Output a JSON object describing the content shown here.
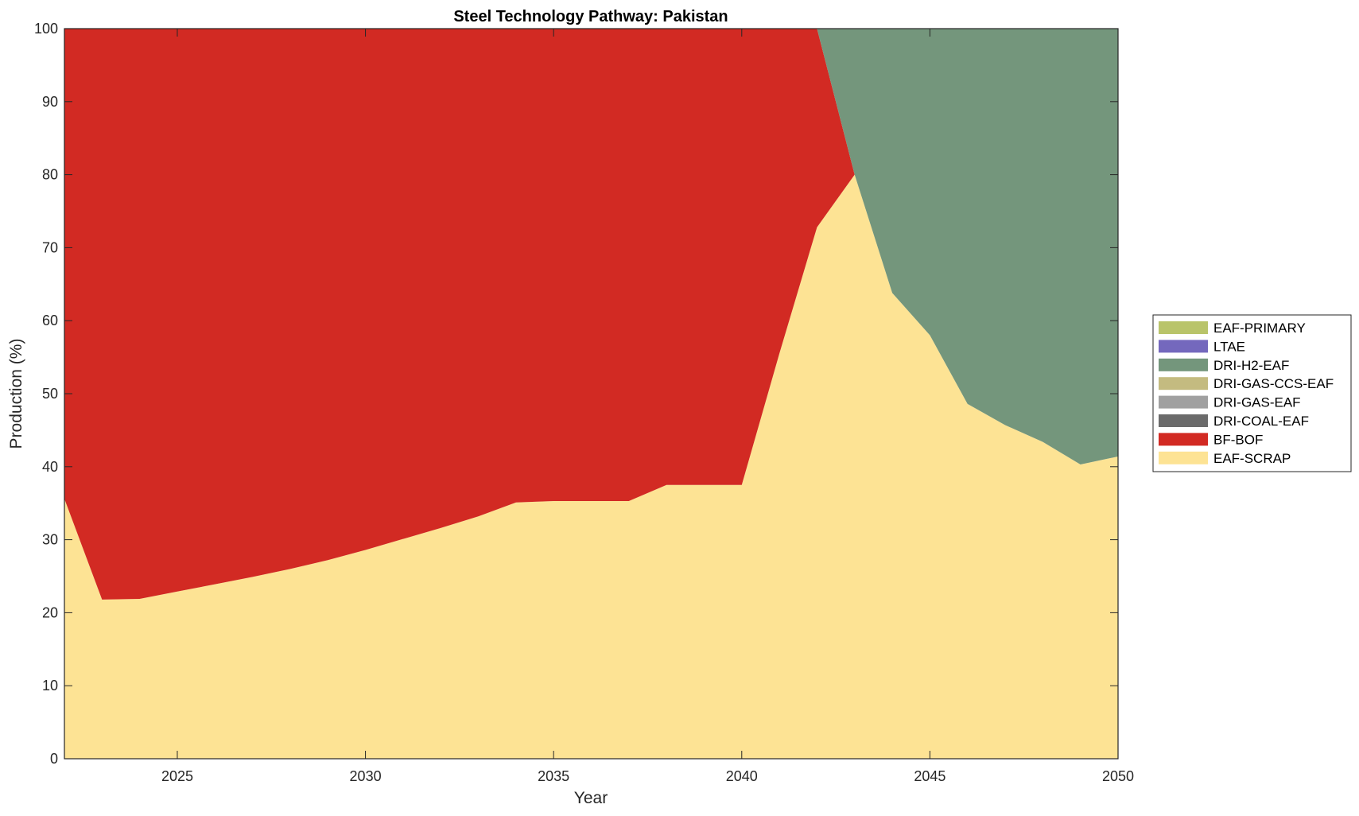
{
  "chart_data": {
    "type": "area",
    "title": "Steel Technology Pathway: Pakistan",
    "xlabel": "Year",
    "ylabel": "Production (%)",
    "xlim": [
      2022,
      2050
    ],
    "ylim": [
      0,
      100
    ],
    "xticks": [
      2025,
      2030,
      2035,
      2040,
      2045,
      2050
    ],
    "yticks": [
      0,
      10,
      20,
      30,
      40,
      50,
      60,
      70,
      80,
      90,
      100
    ],
    "grid": false,
    "legend_position": "right",
    "stacked": true,
    "x": [
      2022,
      2023,
      2024,
      2025,
      2026,
      2027,
      2028,
      2029,
      2030,
      2031,
      2032,
      2033,
      2034,
      2035,
      2036,
      2037,
      2038,
      2039,
      2040,
      2041,
      2042,
      2043,
      2044,
      2045,
      2046,
      2047,
      2048,
      2049,
      2050
    ],
    "series": [
      {
        "name": "EAF-SCRAP",
        "color": "#fde394",
        "values": [
          35.6,
          21.8,
          21.9,
          22.9,
          23.9,
          24.9,
          26.0,
          27.2,
          28.6,
          30.1,
          31.6,
          33.2,
          35.1,
          35.3,
          35.3,
          35.3,
          37.5,
          37.5,
          37.5,
          55.5,
          72.8,
          80.0,
          63.8,
          58.0,
          48.6,
          45.7,
          43.4,
          40.3,
          41.4
        ]
      },
      {
        "name": "BF-BOF",
        "color": "#d22a23",
        "values": [
          64.4,
          78.2,
          78.1,
          77.1,
          76.1,
          75.1,
          74.0,
          72.8,
          71.4,
          69.9,
          68.4,
          66.8,
          64.9,
          64.7,
          64.7,
          64.7,
          62.5,
          62.5,
          62.5,
          44.5,
          27.2,
          0,
          0,
          0,
          0,
          0,
          0,
          0,
          0
        ]
      },
      {
        "name": "DRI-COAL-EAF",
        "color": "#6b6b6b",
        "values": [
          0,
          0,
          0,
          0,
          0,
          0,
          0,
          0,
          0,
          0,
          0,
          0,
          0,
          0,
          0,
          0,
          0,
          0,
          0,
          0,
          0,
          0,
          0,
          0,
          0,
          0,
          0,
          0,
          0
        ]
      },
      {
        "name": "DRI-GAS-EAF",
        "color": "#a0a0a0",
        "values": [
          0,
          0,
          0,
          0,
          0,
          0,
          0,
          0,
          0,
          0,
          0,
          0,
          0,
          0,
          0,
          0,
          0,
          0,
          0,
          0,
          0,
          0,
          0,
          0,
          0,
          0,
          0,
          0,
          0
        ]
      },
      {
        "name": "DRI-GAS-CCS-EAF",
        "color": "#c4bb80",
        "values": [
          0,
          0,
          0,
          0,
          0,
          0,
          0,
          0,
          0,
          0,
          0,
          0,
          0,
          0,
          0,
          0,
          0,
          0,
          0,
          0,
          0,
          0,
          0,
          0,
          0,
          0,
          0,
          0,
          0
        ]
      },
      {
        "name": "DRI-H2-EAF",
        "color": "#74967c",
        "values": [
          0,
          0,
          0,
          0,
          0,
          0,
          0,
          0,
          0,
          0,
          0,
          0,
          0,
          0,
          0,
          0,
          0,
          0,
          0,
          0,
          0,
          20.0,
          36.2,
          42.0,
          51.4,
          54.3,
          56.6,
          59.7,
          58.6
        ]
      },
      {
        "name": "LTAE",
        "color": "#7468bd",
        "values": [
          0,
          0,
          0,
          0,
          0,
          0,
          0,
          0,
          0,
          0,
          0,
          0,
          0,
          0,
          0,
          0,
          0,
          0,
          0,
          0,
          0,
          0,
          0,
          0,
          0,
          0,
          0,
          0,
          0
        ]
      },
      {
        "name": "EAF-PRIMARY",
        "color": "#b9c46a",
        "values": [
          0,
          0,
          0,
          0,
          0,
          0,
          0,
          0,
          0,
          0,
          0,
          0,
          0,
          0,
          0,
          0,
          0,
          0,
          0,
          0,
          0,
          0,
          0,
          0,
          0,
          0,
          0,
          0,
          0
        ]
      }
    ],
    "legend_order": [
      "EAF-PRIMARY",
      "LTAE",
      "DRI-H2-EAF",
      "DRI-GAS-CCS-EAF",
      "DRI-GAS-EAF",
      "DRI-COAL-EAF",
      "BF-BOF",
      "EAF-SCRAP"
    ]
  }
}
